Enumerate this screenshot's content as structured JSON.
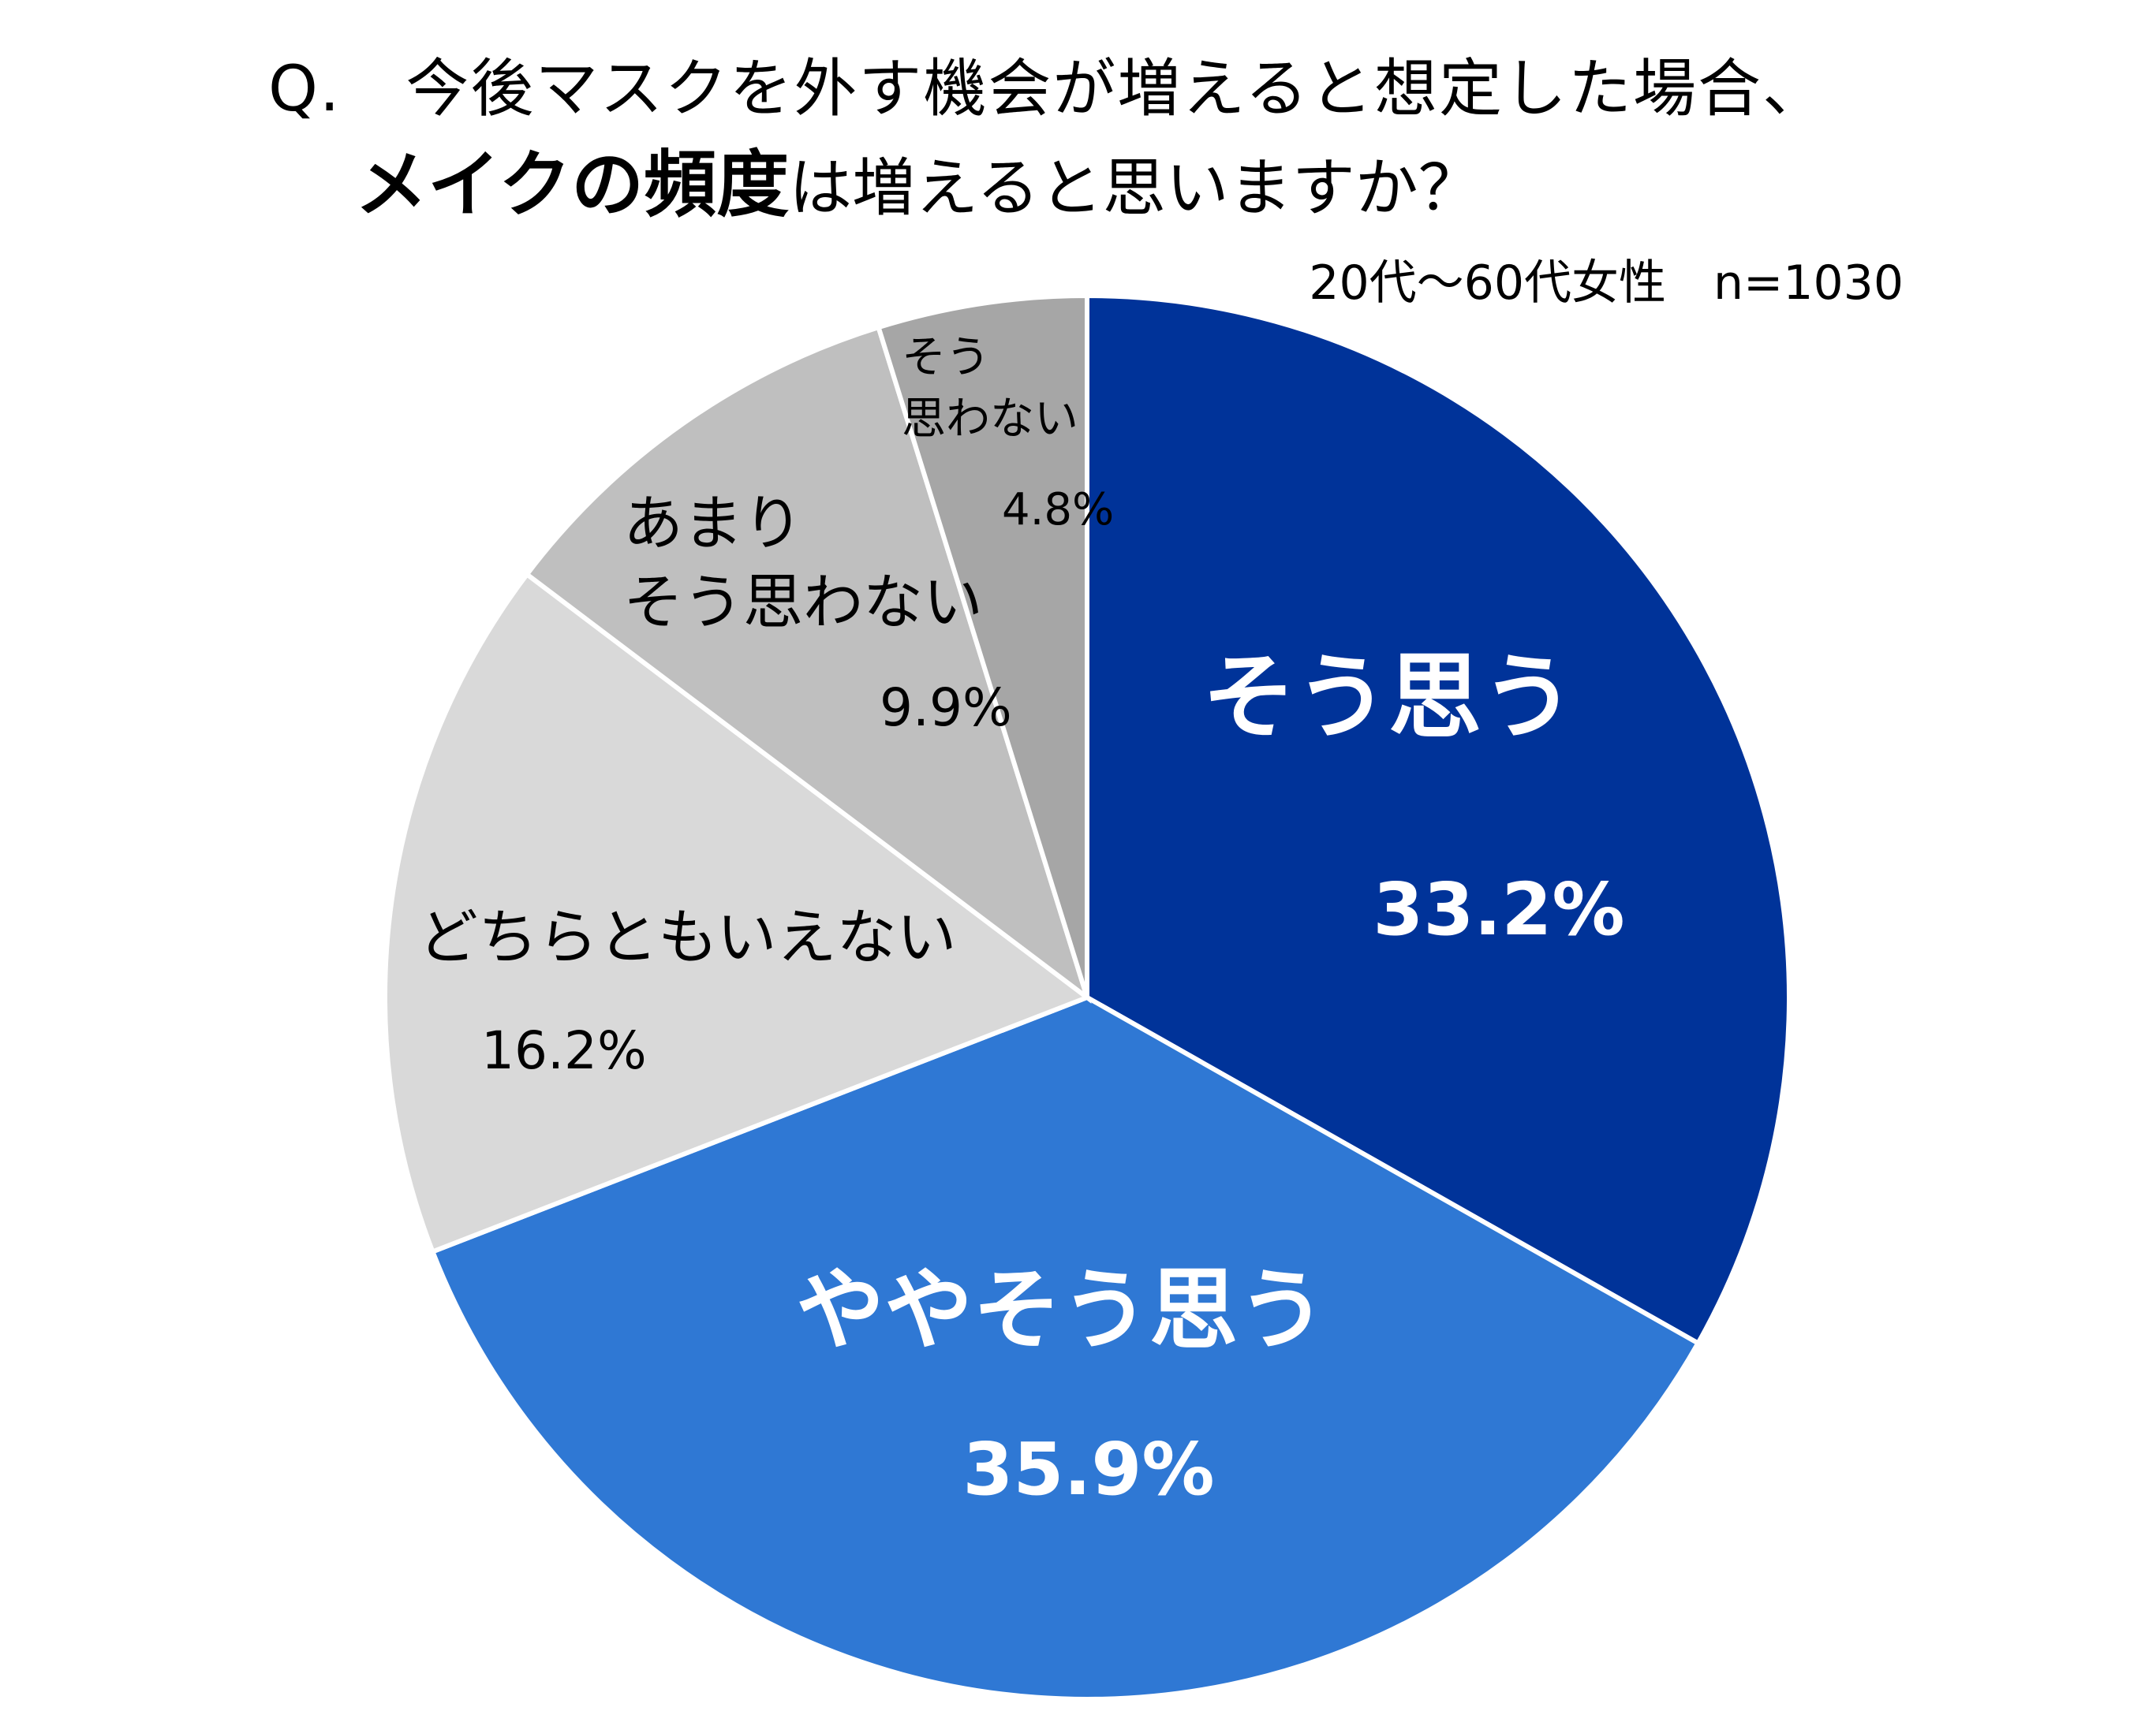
{
  "title": {
    "line1": "Q.　今後マスクを外す機会が増えると想定した場合、",
    "line2_bold": "メイクの頻度",
    "line2_rest": "は増えると思いますか？"
  },
  "sample_note": "20代～60代女性　n=1030",
  "chart_data": {
    "type": "pie",
    "title": "今後マスクを外す機会が増えると想定した場合、メイクの頻度は増えると思いますか？",
    "start": "12 o'clock",
    "direction": "clockwise",
    "unit": "%",
    "slices": [
      {
        "name": "そう思う",
        "value": 33.2,
        "label": "33.2%",
        "color": "#003399",
        "text_color": "#ffffff",
        "bold": true
      },
      {
        "name": "ややそう思う",
        "value": 35.9,
        "label": "35.9%",
        "color": "#2F78D4",
        "text_color": "#ffffff",
        "bold": true
      },
      {
        "name": "どちらともいえない",
        "value": 16.2,
        "label": "16.2%",
        "color": "#D9D9D9",
        "text_color": "#000000",
        "bold": false
      },
      {
        "name": "あまりそう思わない",
        "value": 9.9,
        "label": "9.9%",
        "color": "#BFBFBF",
        "text_color": "#000000",
        "bold": false
      },
      {
        "name": "そう思わない",
        "value": 4.8,
        "label": "4.8%",
        "color": "#A6A6A6",
        "text_color": "#000000",
        "bold": false
      }
    ]
  }
}
